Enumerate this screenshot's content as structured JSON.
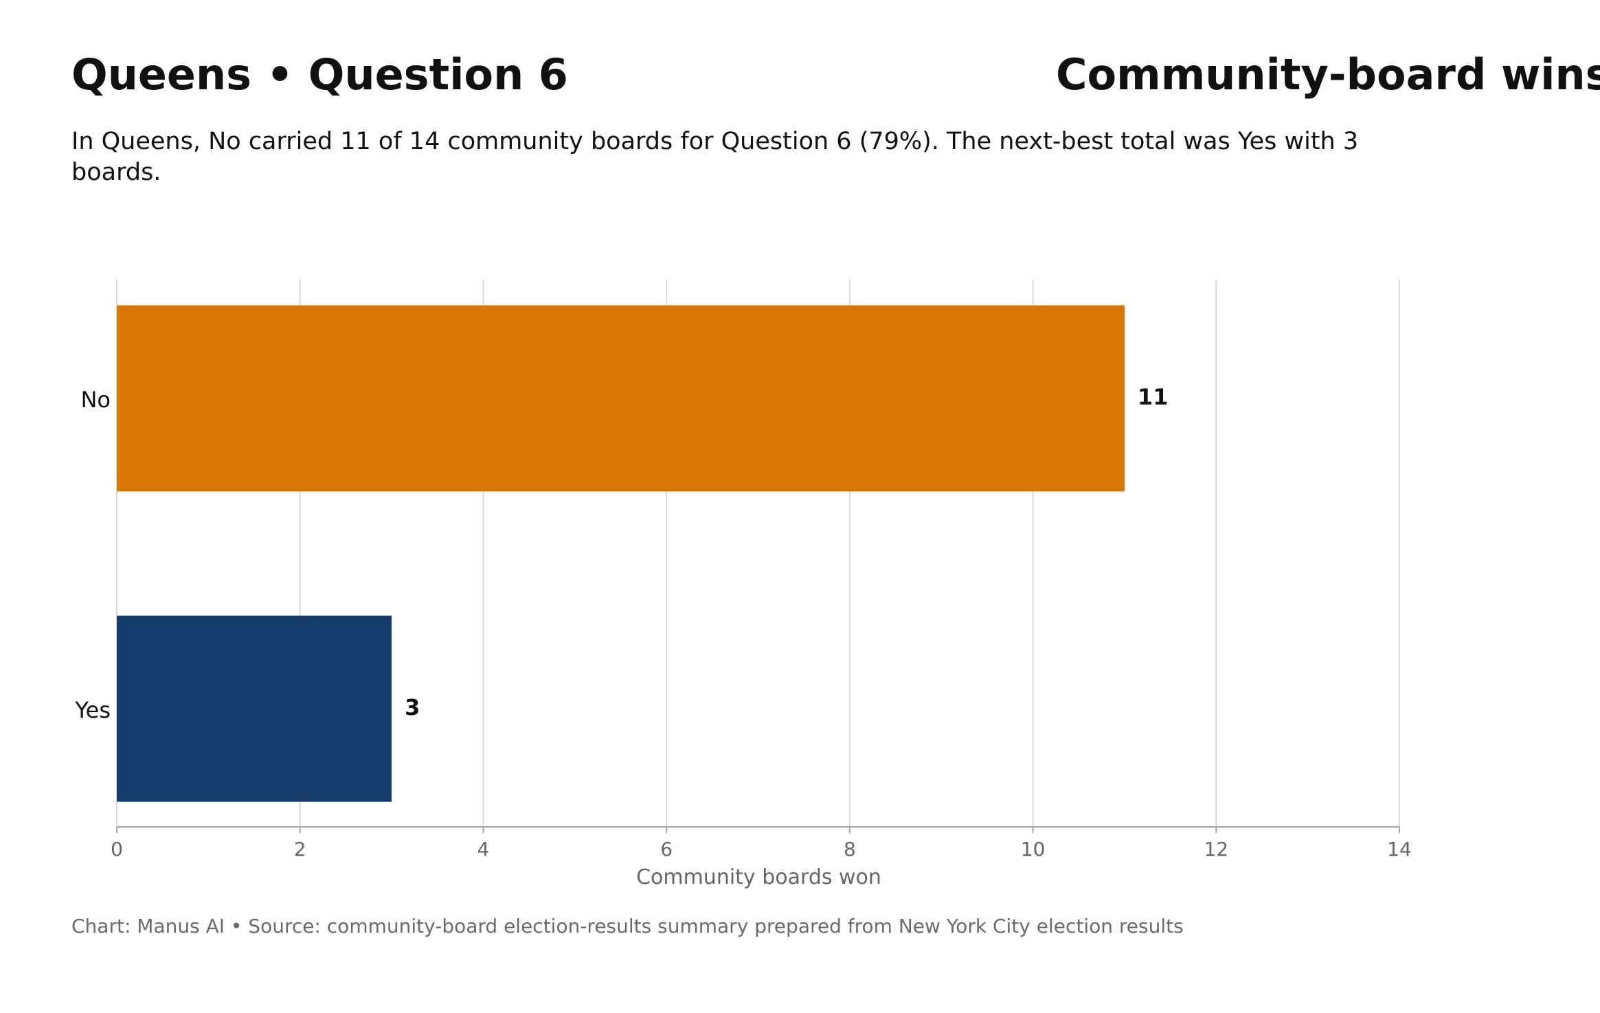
{
  "header": {
    "title_left": "Queens • Question 6",
    "title_right": "Community-board wins",
    "subtitle": "In Queens, No carried 11 of 14 community boards for Question 6 (79%). The next-best total was Yes with 3 boards."
  },
  "footer": {
    "caption": "Chart: Manus AI • Source: community-board election-results summary prepared from New York City election results"
  },
  "chart_data": {
    "type": "bar",
    "orientation": "horizontal",
    "categories": [
      "No",
      "Yes"
    ],
    "values": [
      11,
      3
    ],
    "value_labels": [
      "11",
      "3"
    ],
    "colors": [
      "#D97706",
      "#173D6F"
    ],
    "xlabel": "Community boards won",
    "ylabel": "",
    "xlim": [
      0,
      14
    ],
    "x_ticks": [
      0,
      2,
      4,
      6,
      8,
      10,
      12,
      14
    ],
    "grid": "vertical",
    "gridline_color": "#d9d9d9",
    "axis_color": "#a6a6a6",
    "tick_label_color": "#666666"
  }
}
